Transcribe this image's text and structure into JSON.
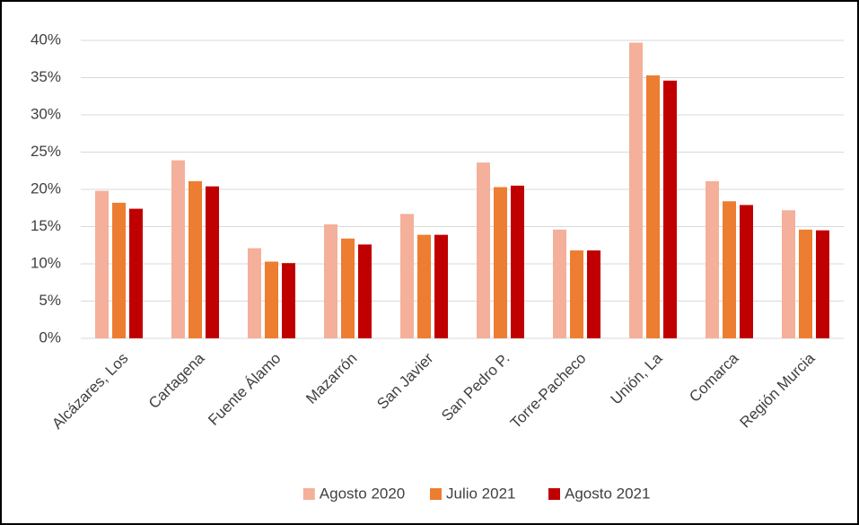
{
  "chart_data": {
    "type": "bar",
    "categories": [
      "Alcázares, Los",
      "Cartagena",
      "Fuente Álamo",
      "Mazarrón",
      "San Javier",
      "San Pedro P.",
      "Torre-Pacheco",
      "Unión, La",
      "Comarca",
      "Región Murcia"
    ],
    "series": [
      {
        "name": "Agosto 2020",
        "color": "#f4b09a",
        "values": [
          19.8,
          23.9,
          12.1,
          15.3,
          16.7,
          23.6,
          14.6,
          39.7,
          21.1,
          17.2
        ]
      },
      {
        "name": "Julio 2021",
        "color": "#ed7d31",
        "values": [
          18.2,
          21.1,
          10.3,
          13.4,
          13.9,
          20.3,
          11.8,
          35.3,
          18.4,
          14.6
        ]
      },
      {
        "name": "Agosto 2021",
        "color": "#c00000",
        "values": [
          17.4,
          20.4,
          10.1,
          12.6,
          13.9,
          20.5,
          11.8,
          34.6,
          17.9,
          14.5
        ]
      }
    ],
    "ylim": [
      0,
      40
    ],
    "yticks": [
      {
        "value": 0,
        "label": "0%"
      },
      {
        "value": 5,
        "label": "5%"
      },
      {
        "value": 10,
        "label": "10%"
      },
      {
        "value": 15,
        "label": "15%"
      },
      {
        "value": 20,
        "label": "20%"
      },
      {
        "value": 25,
        "label": "25%"
      },
      {
        "value": 30,
        "label": "30%"
      },
      {
        "value": 35,
        "label": "35%"
      },
      {
        "value": 40,
        "label": "40%"
      }
    ],
    "grid": true,
    "legend": "bottom"
  }
}
